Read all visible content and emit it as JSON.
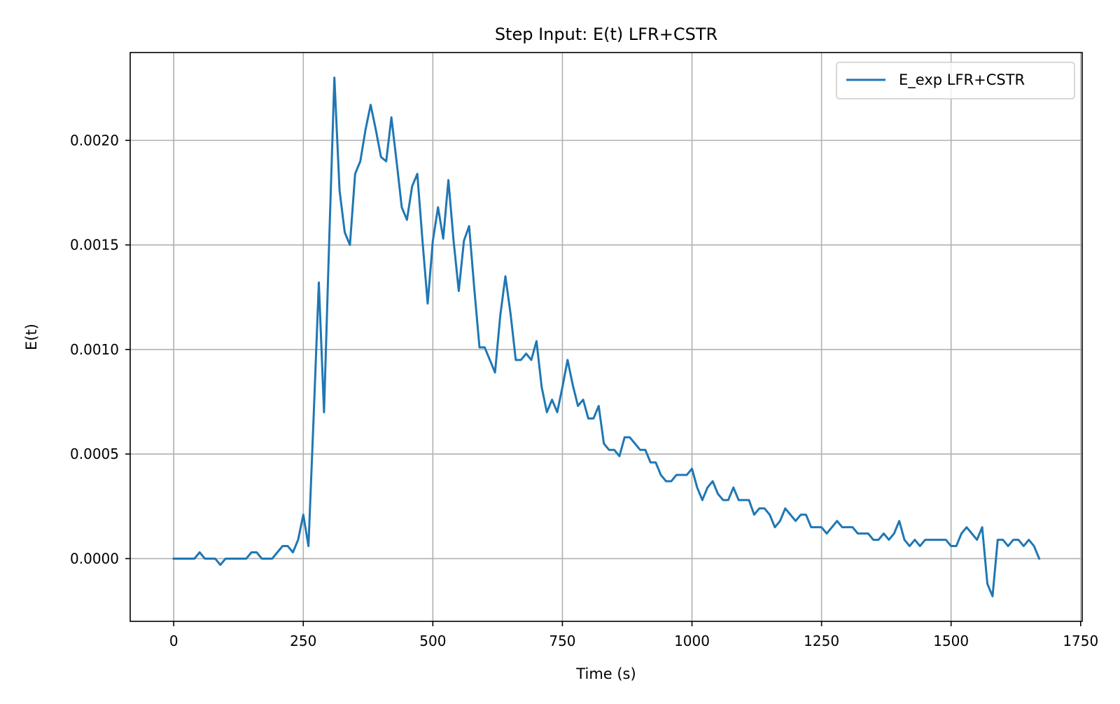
{
  "chart_data": {
    "type": "line",
    "title": "Step Input: E(t) LFR+CSTR",
    "xlabel": "Time (s)",
    "ylabel": "E(t)",
    "xlim": [
      -84,
      1753
    ],
    "ylim": [
      -0.0003,
      0.00242
    ],
    "xticks": [
      0,
      250,
      500,
      750,
      1000,
      1250,
      1500,
      1750
    ],
    "xtick_labels": [
      "0",
      "250",
      "500",
      "750",
      "1000",
      "1250",
      "1500",
      "1750"
    ],
    "yticks": [
      0.0,
      0.0005,
      0.001,
      0.0015,
      0.002
    ],
    "ytick_labels": [
      "0.0000",
      "0.0005",
      "0.0010",
      "0.0015",
      "0.0020"
    ],
    "grid": true,
    "legend_position": "top-right",
    "colors": {
      "series": "#1f77b4",
      "grid": "#b0b0b0",
      "axes": "#000000"
    },
    "series": [
      {
        "name": "E_exp LFR+CSTR",
        "x": [
          0,
          10,
          20,
          30,
          40,
          50,
          60,
          70,
          80,
          90,
          100,
          110,
          120,
          130,
          140,
          150,
          160,
          170,
          180,
          190,
          200,
          210,
          220,
          230,
          240,
          250,
          260,
          270,
          280,
          290,
          300,
          310,
          320,
          330,
          340,
          350,
          360,
          370,
          380,
          390,
          400,
          410,
          420,
          430,
          440,
          450,
          460,
          470,
          480,
          490,
          500,
          510,
          520,
          530,
          540,
          550,
          560,
          570,
          580,
          590,
          600,
          610,
          620,
          630,
          640,
          650,
          660,
          670,
          680,
          690,
          700,
          710,
          720,
          730,
          740,
          750,
          760,
          770,
          780,
          790,
          800,
          810,
          820,
          830,
          840,
          850,
          860,
          870,
          880,
          890,
          900,
          910,
          920,
          930,
          940,
          950,
          960,
          970,
          980,
          990,
          1000,
          1010,
          1020,
          1030,
          1040,
          1050,
          1060,
          1070,
          1080,
          1090,
          1100,
          1110,
          1120,
          1130,
          1140,
          1150,
          1160,
          1170,
          1180,
          1190,
          1200,
          1210,
          1220,
          1230,
          1240,
          1250,
          1260,
          1270,
          1280,
          1290,
          1300,
          1310,
          1320,
          1330,
          1340,
          1350,
          1360,
          1370,
          1380,
          1390,
          1400,
          1410,
          1420,
          1430,
          1440,
          1450,
          1460,
          1470,
          1480,
          1490,
          1500,
          1510,
          1520,
          1530,
          1540,
          1550,
          1560,
          1570,
          1580,
          1590,
          1600,
          1610,
          1620,
          1630,
          1640,
          1650,
          1660,
          1670
        ],
        "y": [
          0.0,
          0.0,
          0.0,
          0.0,
          0.0,
          3e-05,
          0.0,
          0.0,
          0.0,
          -3e-05,
          0.0,
          0.0,
          0.0,
          0.0,
          0.0,
          3e-05,
          3e-05,
          0.0,
          0.0,
          0.0,
          3e-05,
          6e-05,
          6e-05,
          3e-05,
          9e-05,
          0.00021,
          6e-05,
          0.00068,
          0.00132,
          0.0007,
          0.00152,
          0.0023,
          0.00176,
          0.00156,
          0.0015,
          0.00184,
          0.0019,
          0.00205,
          0.00217,
          0.00205,
          0.00192,
          0.0019,
          0.00211,
          0.0019,
          0.00168,
          0.00162,
          0.00178,
          0.00184,
          0.00152,
          0.00122,
          0.00152,
          0.00168,
          0.00153,
          0.00181,
          0.00152,
          0.00128,
          0.00152,
          0.00159,
          0.00129,
          0.00101,
          0.00101,
          0.00095,
          0.00089,
          0.00116,
          0.00135,
          0.00117,
          0.00095,
          0.00095,
          0.00098,
          0.00095,
          0.00104,
          0.00082,
          0.0007,
          0.00076,
          0.0007,
          0.00082,
          0.00095,
          0.00083,
          0.00073,
          0.00076,
          0.00067,
          0.00067,
          0.00073,
          0.00055,
          0.00052,
          0.00052,
          0.00049,
          0.00058,
          0.00058,
          0.00055,
          0.00052,
          0.00052,
          0.00046,
          0.00046,
          0.0004,
          0.00037,
          0.00037,
          0.0004,
          0.0004,
          0.0004,
          0.00043,
          0.00034,
          0.00028,
          0.00034,
          0.00037,
          0.00031,
          0.00028,
          0.00028,
          0.00034,
          0.00028,
          0.00028,
          0.00028,
          0.00021,
          0.00024,
          0.00024,
          0.00021,
          0.00015,
          0.00018,
          0.00024,
          0.00021,
          0.00018,
          0.00021,
          0.00021,
          0.00015,
          0.00015,
          0.00015,
          0.00012,
          0.00015,
          0.00018,
          0.00015,
          0.00015,
          0.00015,
          0.00012,
          0.00012,
          0.00012,
          9e-05,
          9e-05,
          0.00012,
          9e-05,
          0.00012,
          0.00018,
          9e-05,
          6e-05,
          9e-05,
          6e-05,
          9e-05,
          9e-05,
          9e-05,
          9e-05,
          9e-05,
          6e-05,
          6e-05,
          0.00012,
          0.00015,
          0.00012,
          9e-05,
          0.00015,
          -0.00012,
          -0.00018,
          9e-05,
          9e-05,
          6e-05,
          9e-05,
          9e-05,
          6e-05,
          9e-05,
          6e-05,
          0.0
        ]
      }
    ]
  }
}
